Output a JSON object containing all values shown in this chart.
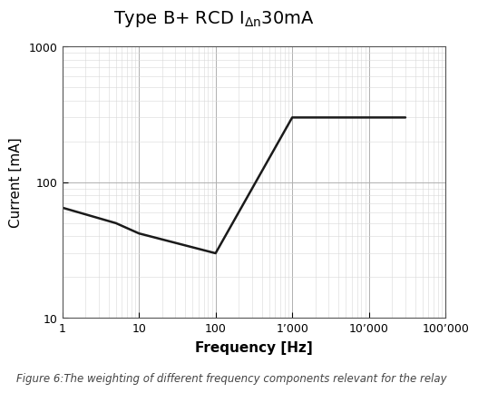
{
  "xlabel": "Frequency [Hz]",
  "ylabel": "Current [mA]",
  "xlim": [
    1,
    100000
  ],
  "ylim": [
    10,
    1000
  ],
  "line_x": [
    1,
    5,
    10,
    100,
    1000,
    20000,
    30000
  ],
  "line_y": [
    65,
    50,
    42,
    30,
    300,
    300,
    300
  ],
  "line_color": "#1a1a1a",
  "line_width": 1.8,
  "bg_color": "#ffffff",
  "grid_major_color": "#b0b0b0",
  "grid_minor_color": "#d8d8d8",
  "grid_major_lw": 0.7,
  "grid_minor_lw": 0.4,
  "caption": "Figure 6:The weighting of different frequency components relevant for the relay",
  "caption_fontsize": 8.5,
  "title_fontsize": 14,
  "axis_label_fontsize": 11,
  "tick_label_fontsize": 9,
  "x_ticks": [
    1,
    10,
    100,
    1000,
    10000,
    100000
  ],
  "x_tick_labels": [
    "1",
    "10",
    "100",
    "1’000",
    "10’000",
    "100’000"
  ],
  "y_ticks": [
    10,
    100,
    1000
  ],
  "y_tick_labels": [
    "10",
    "100",
    "1000"
  ]
}
